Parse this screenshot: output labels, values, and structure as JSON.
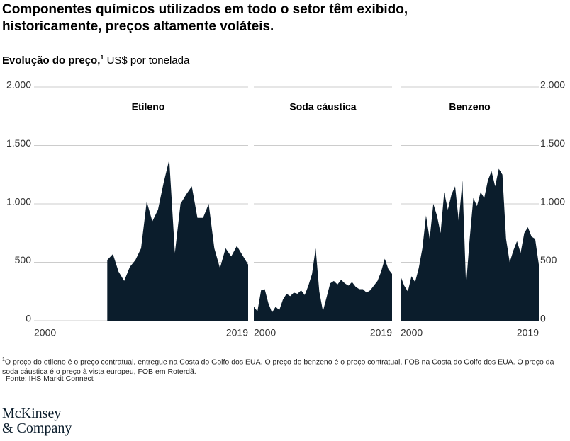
{
  "title": "Componentes químicos utilizados em todo o setor têm exibido, historicamente, preços altamente voláteis.",
  "subtitle": {
    "label": "Evolução do preço,",
    "note": "1",
    "unit": "US$ por tonelada"
  },
  "chart_data": [
    {
      "type": "area",
      "title": "Etileno",
      "color": "#0b1d2c",
      "x": [
        2006.5,
        2007,
        2007.5,
        2008,
        2008.5,
        2009,
        2009.5,
        2010,
        2010.5,
        2011,
        2011.5,
        2012,
        2012.5,
        2013,
        2013.5,
        2014,
        2014.5,
        2015,
        2015.5,
        2016,
        2016.5,
        2017,
        2017.5,
        2018,
        2018.5,
        2019
      ],
      "values": [
        520,
        570,
        420,
        340,
        460,
        520,
        620,
        1020,
        850,
        950,
        1180,
        1380,
        580,
        1000,
        1080,
        1150,
        880,
        880,
        1000,
        620,
        450,
        620,
        550,
        640,
        560,
        480
      ],
      "xlim": [
        2000,
        2019
      ],
      "xticks": [
        2000,
        2019
      ],
      "ylim": [
        0,
        2000
      ],
      "yticks": [
        0,
        500,
        {
          "value": 1000,
          "label": "1.000"
        },
        {
          "value": 1500,
          "label": "1.500"
        },
        {
          "value": 2000,
          "label": "2.000"
        }
      ],
      "grid": true,
      "axis_side": "left"
    },
    {
      "type": "area",
      "title": "Soda cáustica",
      "color": "#0b1d2c",
      "x": [
        2000,
        2000.5,
        2001,
        2001.5,
        2002,
        2002.5,
        2003,
        2003.5,
        2004,
        2004.5,
        2005,
        2005.5,
        2006,
        2006.5,
        2007,
        2007.5,
        2008,
        2008.5,
        2009,
        2009.5,
        2010,
        2010.5,
        2011,
        2011.5,
        2012,
        2012.5,
        2013,
        2013.5,
        2014,
        2014.5,
        2015,
        2015.5,
        2016,
        2016.5,
        2017,
        2017.5,
        2018,
        2018.5,
        2019
      ],
      "values": [
        120,
        80,
        260,
        270,
        150,
        70,
        120,
        90,
        180,
        230,
        210,
        240,
        230,
        260,
        220,
        300,
        400,
        620,
        250,
        80,
        200,
        320,
        340,
        310,
        350,
        320,
        300,
        330,
        290,
        270,
        270,
        240,
        260,
        300,
        340,
        420,
        530,
        440,
        400
      ],
      "xlim": [
        2000,
        2019
      ],
      "xticks": [
        2000,
        2019
      ],
      "ylim": [
        0,
        2000
      ],
      "yticks": [
        0,
        500,
        1000,
        1500,
        2000
      ],
      "grid": true
    },
    {
      "type": "area",
      "title": "Benzeno",
      "color": "#0b1d2c",
      "x": [
        2000,
        2000.5,
        2001,
        2001.5,
        2002,
        2002.5,
        2003,
        2003.5,
        2004,
        2004.5,
        2005,
        2005.5,
        2006,
        2006.5,
        2007,
        2007.5,
        2008,
        2008.5,
        2009,
        2009.5,
        2010,
        2010.5,
        2011,
        2011.5,
        2012,
        2012.5,
        2013,
        2013.5,
        2014,
        2014.5,
        2015,
        2015.5,
        2016,
        2016.5,
        2017,
        2017.5,
        2018,
        2018.5,
        2019
      ],
      "values": [
        380,
        300,
        250,
        380,
        330,
        450,
        620,
        900,
        700,
        1000,
        900,
        750,
        1100,
        950,
        1080,
        1150,
        850,
        1200,
        300,
        700,
        1050,
        980,
        1100,
        1050,
        1200,
        1280,
        1150,
        1300,
        1250,
        700,
        500,
        600,
        680,
        580,
        750,
        800,
        720,
        700,
        480
      ],
      "xlim": [
        2000,
        2019
      ],
      "xticks": [
        2000,
        2019
      ],
      "ylim": [
        0,
        2000
      ],
      "yticks": [
        0,
        500,
        {
          "value": 1000,
          "label": "1.000"
        },
        {
          "value": 1500,
          "label": "1.500"
        },
        {
          "value": 2000,
          "label": "2.000"
        }
      ],
      "grid": true,
      "axis_side": "right"
    }
  ],
  "footnote": {
    "marker": "1",
    "text": "O preço do etileno é o preço contratual, entregue na Costa do Golfo dos EUA. O preço do benzeno é o preço contratual, FOB na Costa do Golfo dos EUA. O preço da soda cáustica é o preço à vista europeu, FOB em Roterdã."
  },
  "source": "Fonte: IHS Markit Connect",
  "logo": [
    "McKinsey",
    "& Company"
  ]
}
